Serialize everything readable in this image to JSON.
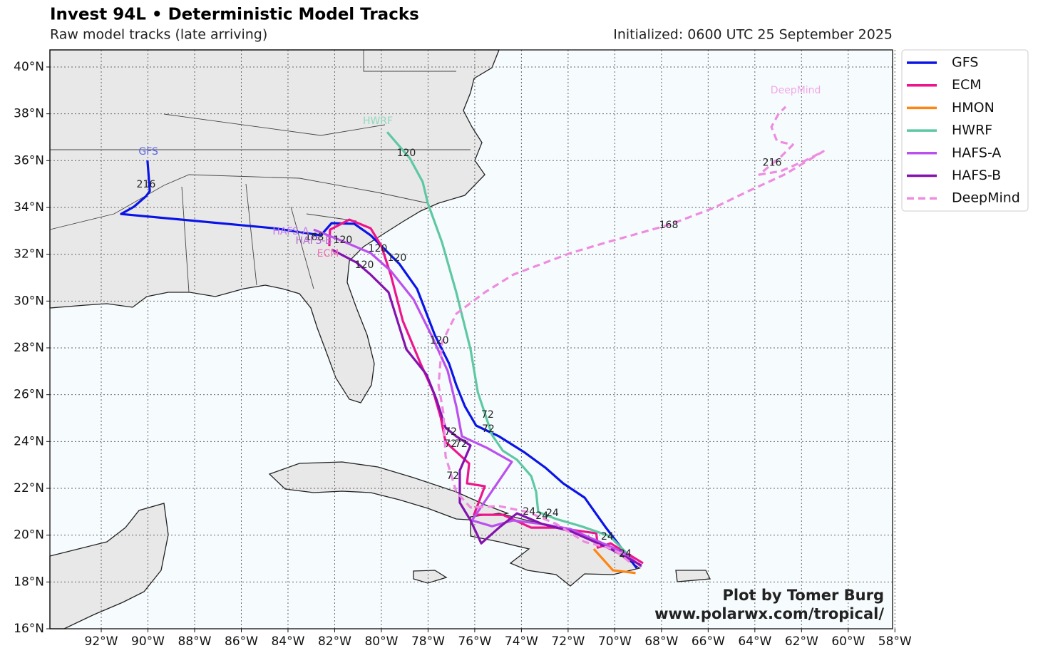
{
  "chart_data": {
    "type": "line",
    "title": "Invest 94L • Deterministic Model Tracks",
    "subtitle": "Raw model tracks (late arriving)",
    "initialized": "Initialized: 0600 UTC 25 September 2025",
    "credit": [
      "Plot by Tomer Burg",
      "www.polarwx.com/tropical/"
    ],
    "xlim": [
      -94.2,
      -58.1
    ],
    "ylim": [
      16,
      40.73
    ],
    "grid": true,
    "legend": "outside-right",
    "xticks": [
      {
        "value": -92,
        "label": "92°W"
      },
      {
        "value": -90,
        "label": "90°W"
      },
      {
        "value": -88,
        "label": "88°W"
      },
      {
        "value": -86,
        "label": "86°W"
      },
      {
        "value": -84,
        "label": "84°W"
      },
      {
        "value": -82,
        "label": "82°W"
      },
      {
        "value": -80,
        "label": "80°W"
      },
      {
        "value": -78,
        "label": "78°W"
      },
      {
        "value": -76,
        "label": "76°W"
      },
      {
        "value": -74,
        "label": "74°W"
      },
      {
        "value": -72,
        "label": "72°W"
      },
      {
        "value": -70,
        "label": "70°W"
      },
      {
        "value": -68,
        "label": "68°W"
      },
      {
        "value": -66,
        "label": "66°W"
      },
      {
        "value": -64,
        "label": "64°W"
      },
      {
        "value": -62,
        "label": "62°W"
      },
      {
        "value": -60,
        "label": "60°W"
      },
      {
        "value": -58,
        "label": "58°W"
      }
    ],
    "yticks": [
      {
        "value": 16,
        "label": "16°N"
      },
      {
        "value": 18,
        "label": "18°N"
      },
      {
        "value": 20,
        "label": "20°N"
      },
      {
        "value": 22,
        "label": "22°N"
      },
      {
        "value": 24,
        "label": "24°N"
      },
      {
        "value": 26,
        "label": "26°N"
      },
      {
        "value": 28,
        "label": "28°N"
      },
      {
        "value": 30,
        "label": "30°N"
      },
      {
        "value": 32,
        "label": "32°N"
      },
      {
        "value": 34,
        "label": "34°N"
      },
      {
        "value": 36,
        "label": "36°N"
      },
      {
        "value": 38,
        "label": "38°N"
      },
      {
        "value": 40,
        "label": "40°N"
      }
    ],
    "series": [
      {
        "name": "GFS",
        "color": "#0a14e6",
        "label_color": "#5a66e6",
        "dashed": false,
        "x": [
          -69.06,
          -70.38,
          -71.29,
          -72.21,
          -72.97,
          -73.89,
          -74.96,
          -75.94,
          -76.42,
          -76.79,
          -77.1,
          -77.71,
          -78.47,
          -79.23,
          -80.46,
          -81.16,
          -82.13,
          -82.59,
          -84.58,
          -91.15,
          -90.6,
          -90.08,
          -89.92,
          -90.02
        ],
        "values": [
          18.59,
          20.32,
          21.6,
          22.21,
          22.88,
          23.55,
          24.22,
          24.68,
          25.5,
          26.41,
          27.33,
          28.55,
          30.52,
          31.59,
          32.81,
          33.3,
          33.33,
          32.81,
          33.11,
          33.72,
          34.03,
          34.48,
          34.7,
          36.01
        ]
      },
      {
        "name": "ECM",
        "color": "#ee148c",
        "label_color": "#f070b8",
        "dashed": false,
        "x": [
          -68.79,
          -70.18,
          -70.73,
          -70.79,
          -72.51,
          -73.58,
          -74.8,
          -76.03,
          -75.57,
          -76.33,
          -76.24,
          -77.25,
          -77.46,
          -77.77,
          -78.32,
          -79.08,
          -79.6,
          -80.0,
          -80.46,
          -81.37,
          -82.2,
          -82.23
        ],
        "values": [
          18.8,
          19.65,
          19.47,
          20.08,
          20.32,
          20.32,
          20.87,
          20.87,
          22.09,
          22.21,
          23.06,
          23.98,
          25.04,
          26.11,
          27.33,
          29.15,
          31.13,
          32.35,
          33.11,
          33.48,
          33.05,
          32.35
        ]
      },
      {
        "name": "HMON",
        "color": "#ff8410",
        "label_color": "#ff8410",
        "dashed": false,
        "x": [
          -69.11,
          -70.08,
          -70.9
        ],
        "values": [
          18.38,
          18.5,
          19.41
        ]
      },
      {
        "name": "HWRF",
        "color": "#5ec8a2",
        "label_color": "#8fd8bc",
        "dashed": false,
        "x": [
          -69.46,
          -70.22,
          -71.44,
          -72.51,
          -73.28,
          -73.37,
          -73.58,
          -74.19,
          -74.8,
          -75.26,
          -75.87,
          -76.18,
          -76.79,
          -77.4,
          -78.01,
          -78.23,
          -78.78,
          -79.75
        ],
        "values": [
          19.2,
          19.96,
          20.38,
          20.69,
          20.99,
          21.85,
          22.52,
          23.22,
          23.61,
          24.28,
          26.11,
          27.94,
          30.37,
          32.5,
          34.18,
          35.09,
          36.1,
          37.22
        ]
      },
      {
        "name": "HAFS-A",
        "color": "#bb50ee",
        "label_color": "#c47ae8",
        "dashed": false,
        "x": [
          -68.86,
          -69.62,
          -71.9,
          -73.12,
          -74.35,
          -75.26,
          -76.12,
          -74.41,
          -75.48,
          -76.55,
          -76.79,
          -77.16,
          -77.86,
          -78.62,
          -79.6,
          -80.46,
          -81.68,
          -82.9
        ],
        "values": [
          18.65,
          19.26,
          20.26,
          20.48,
          20.63,
          20.38,
          20.63,
          23.13,
          23.73,
          24.22,
          25.5,
          27.02,
          28.55,
          30.07,
          31.29,
          32.05,
          32.57,
          33.05
        ]
      },
      {
        "name": "HAFS-B",
        "color": "#8412ae",
        "label_color": "#b46ad0",
        "dashed": false,
        "x": [
          -68.86,
          -70.18,
          -71.9,
          -73.12,
          -74.19,
          -74.96,
          -75.72,
          -76.18,
          -76.64,
          -76.64,
          -76.18,
          -76.79,
          -77.25,
          -77.64,
          -78.07,
          -78.93,
          -79.69,
          -80.46,
          -81.07,
          -82.13
        ],
        "values": [
          18.71,
          19.41,
          20.17,
          20.48,
          20.93,
          20.32,
          19.65,
          20.63,
          21.39,
          22.76,
          23.83,
          24.22,
          24.59,
          25.8,
          26.87,
          27.94,
          30.37,
          31.13,
          31.65,
          32.2
        ]
      },
      {
        "name": "DeepMind",
        "color": "#ee8ce0",
        "label_color": "#f2a8e8",
        "dashed": true,
        "x": [
          -69.37,
          -70.07,
          -71.29,
          -72.51,
          -73.74,
          -74.96,
          -76.18,
          -76.79,
          -77.25,
          -77.34,
          -77.55,
          -77.4,
          -76.79,
          -75.57,
          -74.35,
          -73.12,
          -71.9,
          -70.38,
          -67.63,
          -65.79,
          -64.27,
          -62.74,
          -61.06,
          -61.82,
          -62.89,
          -63.81,
          -63.35,
          -62.89,
          -62.37,
          -63.05,
          -63.29,
          -62.99,
          -62.68
        ],
        "values": [
          18.86,
          19.41,
          19.71,
          20.48,
          20.99,
          21.24,
          21.18,
          21.85,
          23.37,
          25.2,
          26.41,
          28.24,
          29.46,
          30.37,
          31.13,
          31.59,
          32.05,
          32.5,
          33.27,
          33.97,
          34.7,
          35.4,
          36.4,
          36.01,
          35.55,
          35.4,
          35.79,
          36.16,
          36.68,
          36.83,
          37.44,
          37.99,
          38.3
        ]
      }
    ],
    "annotations": [
      {
        "text": "168",
        "lon": -82.87,
        "lat": 32.72
      },
      {
        "text": "120",
        "lon": -81.65,
        "lat": 32.6
      },
      {
        "text": "120",
        "lon": -80.15,
        "lat": 32.23
      },
      {
        "text": "120",
        "lon": -79.33,
        "lat": 31.83
      },
      {
        "text": "120",
        "lon": -80.73,
        "lat": 31.53
      },
      {
        "text": "120",
        "lon": -78.93,
        "lat": 36.31
      },
      {
        "text": "120",
        "lon": -77.52,
        "lat": 28.3
      },
      {
        "text": "168",
        "lon": -67.69,
        "lat": 33.24
      },
      {
        "text": "216",
        "lon": -63.26,
        "lat": 35.91
      },
      {
        "text": "216",
        "lon": -90.08,
        "lat": 34.97
      },
      {
        "text": "72",
        "lon": -75.45,
        "lat": 25.14
      },
      {
        "text": "72",
        "lon": -75.42,
        "lat": 24.53
      },
      {
        "text": "72",
        "lon": -77.03,
        "lat": 24.4
      },
      {
        "text": "72",
        "lon": -77.03,
        "lat": 23.89
      },
      {
        "text": "72",
        "lon": -76.58,
        "lat": 23.89
      },
      {
        "text": "72",
        "lon": -76.94,
        "lat": 22.52
      },
      {
        "text": "24",
        "lon": -73.67,
        "lat": 21.0
      },
      {
        "text": "24",
        "lon": -72.67,
        "lat": 20.93
      },
      {
        "text": "24",
        "lon": -73.12,
        "lat": 20.81
      },
      {
        "text": "24",
        "lon": -70.32,
        "lat": 19.93
      },
      {
        "text": "24",
        "lon": -69.55,
        "lat": 19.2
      }
    ],
    "track_labels": [
      {
        "series": 0,
        "lon": -89.98,
        "lat": 36.37
      },
      {
        "series": 3,
        "lon": -80.15,
        "lat": 37.68
      },
      {
        "series": 4,
        "lon": -83.88,
        "lat": 32.96
      },
      {
        "series": 5,
        "lon": -82.9,
        "lat": 32.57
      },
      {
        "series": 1,
        "lon": -82.29,
        "lat": 32.02
      },
      {
        "series": 6,
        "lon": -62.25,
        "lat": 38.99
      }
    ]
  }
}
